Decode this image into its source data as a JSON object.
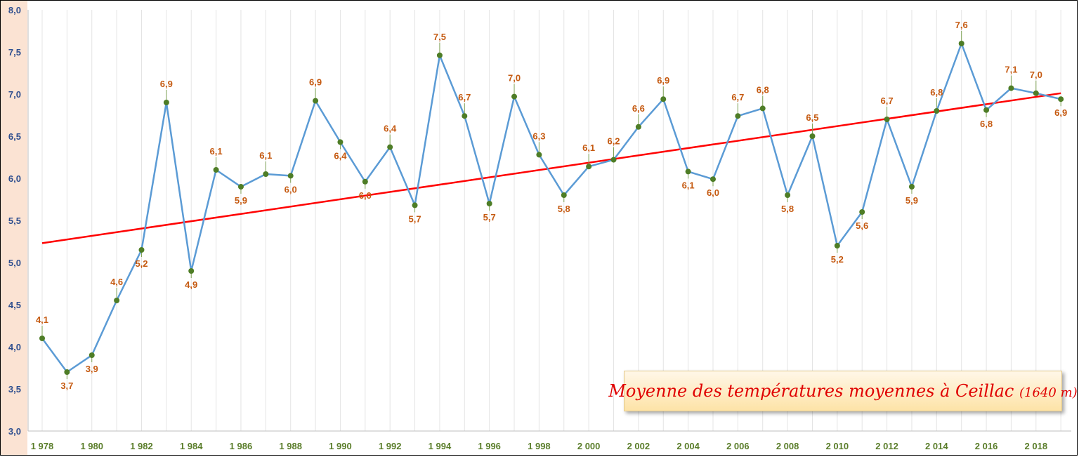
{
  "chart_data": {
    "type": "line",
    "title": "Moyenne des températures moyennes à Ceillac",
    "subtitle": "(1640 m)",
    "x": [
      1978,
      1979,
      1980,
      1981,
      1982,
      1983,
      1984,
      1985,
      1986,
      1987,
      1988,
      1989,
      1990,
      1991,
      1992,
      1993,
      1994,
      1995,
      1996,
      1997,
      1998,
      1999,
      2000,
      2001,
      2002,
      2003,
      2004,
      2005,
      2006,
      2007,
      2008,
      2009,
      2010,
      2011,
      2012,
      2013,
      2014,
      2015,
      2016,
      2017,
      2018,
      2019
    ],
    "x_tick_labels": [
      "1 978",
      "1 980",
      "1 982",
      "1 984",
      "1 986",
      "1 988",
      "1 990",
      "1 992",
      "1 994",
      "1 996",
      "1 998",
      "2 000",
      "2 002",
      "2 004",
      "2 006",
      "2 008",
      "2 010",
      "2 012",
      "2 014",
      "2 016",
      "2 018"
    ],
    "y_tick_labels": [
      "3,0",
      "3,5",
      "4,0",
      "4,5",
      "5,0",
      "5,5",
      "6,0",
      "6,5",
      "7,0",
      "7,5",
      "8,0"
    ],
    "ylim": [
      3.0,
      8.0
    ],
    "grid": "vertical",
    "legend": "none",
    "series": [
      {
        "values": [
          4.1,
          3.7,
          3.9,
          4.55,
          5.15,
          6.9,
          4.9,
          6.1,
          5.9,
          6.05,
          6.03,
          6.92,
          6.43,
          5.96,
          6.37,
          5.68,
          7.46,
          6.74,
          5.7,
          6.97,
          6.28,
          5.8,
          6.14,
          6.22,
          6.61,
          6.94,
          6.08,
          5.99,
          6.74,
          6.83,
          5.8,
          6.5,
          5.2,
          5.6,
          6.7,
          5.9,
          6.8,
          7.6,
          6.81,
          7.07,
          7.01,
          6.94
        ],
        "labels": [
          "4,1",
          "3,7",
          "3,9",
          "4,6",
          "5,2",
          "6,9",
          "4,9",
          "6,1",
          "5,9",
          "6,1",
          "6,0",
          "6,9",
          "6,4",
          "6,0",
          "6,4",
          "5,7",
          "7,5",
          "6,7",
          "5,7",
          "7,0",
          "6,3",
          "5,8",
          "6,1",
          "6,2",
          "6,6",
          "6,9",
          "6,1",
          "6,0",
          "6,7",
          "6,8",
          "5,8",
          "6,5",
          "5,2",
          "5,6",
          "6,7",
          "5,9",
          "6,8",
          "7,6",
          "6,8",
          "7,1",
          "7,0",
          "6,9"
        ],
        "label_pos": [
          "a",
          "b",
          "b",
          "a",
          "b",
          "a",
          "b",
          "a",
          "b",
          "a",
          "b",
          "a",
          "b",
          "b",
          "a",
          "b",
          "a",
          "a",
          "b",
          "a",
          "a",
          "b",
          "a",
          "a",
          "a",
          "a",
          "b",
          "b",
          "a",
          "a",
          "b",
          "a",
          "b",
          "b",
          "a",
          "b",
          "a",
          "a",
          "b",
          "a",
          "a",
          "b"
        ],
        "color": "#5b9bd5",
        "marker_color": "#4e7d26"
      }
    ],
    "trendline": {
      "start": 5.23,
      "end": 7.01,
      "color": "#ff0000"
    },
    "data_label_color": "#c55a11",
    "leader_line_color": "#7fa356"
  }
}
